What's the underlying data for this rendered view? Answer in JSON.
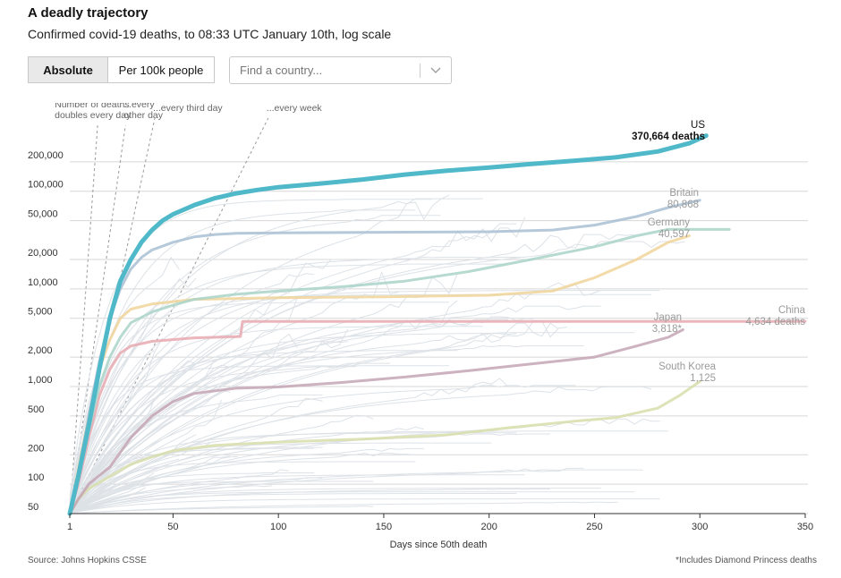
{
  "header": {
    "title": "A deadly trajectory",
    "subtitle": "Confirmed covid-19 deaths, to 08:33 UTC January 10th, log scale"
  },
  "controls": {
    "toggle": {
      "active_label": "Absolute",
      "inactive_label": "Per 100k people"
    },
    "search": {
      "placeholder": "Find a country..."
    },
    "dropdown_icon": "chevron-down-icon"
  },
  "footer": {
    "source": "Source: Johns Hopkins CSSE",
    "footnote": "*Includes Diamond Princess deaths"
  },
  "chart_data": {
    "type": "line",
    "xlabel": "Days since 50th death",
    "ylabel": "",
    "y_scale": "log",
    "xlim": [
      1,
      350
    ],
    "ylim": [
      50,
      400000
    ],
    "x_ticks": [
      1,
      50,
      100,
      150,
      200,
      250,
      300,
      350
    ],
    "y_ticks": [
      {
        "value": 200000,
        "label": "200,000"
      },
      {
        "value": 100000,
        "label": "100,000"
      },
      {
        "value": 50000,
        "label": "50,000"
      },
      {
        "value": 20000,
        "label": "20,000"
      },
      {
        "value": 10000,
        "label": "10,000"
      },
      {
        "value": 5000,
        "label": "5,000"
      },
      {
        "value": 2000,
        "label": "2,000"
      },
      {
        "value": 1000,
        "label": "1,000"
      },
      {
        "value": 500,
        "label": "500"
      },
      {
        "value": 200,
        "label": "200"
      },
      {
        "value": 100,
        "label": "100"
      },
      {
        "value": 50,
        "label": "50"
      }
    ],
    "grid": true,
    "doubling_guides": [
      {
        "label_lines": [
          "Number of deaths",
          "doubles every day"
        ],
        "days": 1
      },
      {
        "label_lines": [
          "...every",
          "other day"
        ],
        "days": 2
      },
      {
        "label_lines": [
          "...every third day"
        ],
        "days": 3
      },
      {
        "label_lines": [
          "...every week"
        ],
        "days": 7
      }
    ],
    "highlighted_series": [
      {
        "name": "US",
        "value_label": "370,664 deaths",
        "color": "#4fb8c9",
        "points": [
          [
            1,
            50
          ],
          [
            5,
            120
          ],
          [
            10,
            400
          ],
          [
            15,
            1500
          ],
          [
            20,
            5000
          ],
          [
            25,
            12000
          ],
          [
            30,
            20000
          ],
          [
            35,
            30000
          ],
          [
            40,
            40000
          ],
          [
            45,
            50000
          ],
          [
            50,
            58000
          ],
          [
            60,
            72000
          ],
          [
            70,
            85000
          ],
          [
            80,
            95000
          ],
          [
            90,
            103000
          ],
          [
            100,
            110000
          ],
          [
            120,
            120000
          ],
          [
            140,
            132000
          ],
          [
            160,
            148000
          ],
          [
            180,
            162000
          ],
          [
            200,
            175000
          ],
          [
            220,
            190000
          ],
          [
            240,
            205000
          ],
          [
            260,
            222000
          ],
          [
            280,
            255000
          ],
          [
            295,
            310000
          ],
          [
            303,
            370664
          ]
        ]
      },
      {
        "name": "Britain",
        "value_label": "80,868",
        "color": "#a8c0d4",
        "points": [
          [
            1,
            50
          ],
          [
            5,
            130
          ],
          [
            10,
            500
          ],
          [
            15,
            1800
          ],
          [
            20,
            5000
          ],
          [
            25,
            10000
          ],
          [
            30,
            16000
          ],
          [
            35,
            21000
          ],
          [
            40,
            25000
          ],
          [
            50,
            30000
          ],
          [
            60,
            34000
          ],
          [
            70,
            36000
          ],
          [
            80,
            37000
          ],
          [
            100,
            37500
          ],
          [
            150,
            38000
          ],
          [
            200,
            38500
          ],
          [
            230,
            40000
          ],
          [
            250,
            45000
          ],
          [
            270,
            55000
          ],
          [
            285,
            68000
          ],
          [
            300,
            80868
          ]
        ]
      },
      {
        "name": "Germany",
        "value_label": "40,597",
        "color": "#a9d3c8",
        "points": [
          [
            1,
            50
          ],
          [
            5,
            110
          ],
          [
            10,
            350
          ],
          [
            15,
            1000
          ],
          [
            20,
            2000
          ],
          [
            25,
            3200
          ],
          [
            30,
            4500
          ],
          [
            40,
            5800
          ],
          [
            50,
            6800
          ],
          [
            60,
            7800
          ],
          [
            80,
            8800
          ],
          [
            100,
            9500
          ],
          [
            130,
            10500
          ],
          [
            160,
            12000
          ],
          [
            190,
            15000
          ],
          [
            220,
            20000
          ],
          [
            250,
            27000
          ],
          [
            270,
            35000
          ],
          [
            285,
            40597
          ],
          [
            314,
            40597
          ]
        ]
      },
      {
        "name": "",
        "value_label": "",
        "color": "#f0d49a",
        "points": [
          [
            1,
            50
          ],
          [
            5,
            140
          ],
          [
            10,
            500
          ],
          [
            15,
            1500
          ],
          [
            20,
            3000
          ],
          [
            25,
            5000
          ],
          [
            30,
            6200
          ],
          [
            40,
            7000
          ],
          [
            60,
            7800
          ],
          [
            100,
            8100
          ],
          [
            150,
            8300
          ],
          [
            200,
            8600
          ],
          [
            230,
            9500
          ],
          [
            250,
            13000
          ],
          [
            270,
            20000
          ],
          [
            285,
            30000
          ],
          [
            295,
            35000
          ]
        ]
      },
      {
        "name": "China",
        "value_label": "4,634 deaths",
        "color": "#e8a8b0",
        "points": [
          [
            1,
            50
          ],
          [
            5,
            100
          ],
          [
            10,
            300
          ],
          [
            15,
            800
          ],
          [
            20,
            1500
          ],
          [
            25,
            2200
          ],
          [
            30,
            2600
          ],
          [
            40,
            2900
          ],
          [
            60,
            3150
          ],
          [
            82,
            3250
          ],
          [
            83,
            4634
          ],
          [
            150,
            4634
          ],
          [
            250,
            4634
          ],
          [
            350,
            4634
          ]
        ]
      },
      {
        "name": "Japan",
        "value_label": "3,818*",
        "color": "#c4a4b4",
        "points": [
          [
            1,
            50
          ],
          [
            5,
            70
          ],
          [
            10,
            100
          ],
          [
            20,
            150
          ],
          [
            30,
            300
          ],
          [
            40,
            500
          ],
          [
            50,
            700
          ],
          [
            60,
            850
          ],
          [
            80,
            960
          ],
          [
            100,
            990
          ],
          [
            130,
            1100
          ],
          [
            160,
            1250
          ],
          [
            190,
            1450
          ],
          [
            220,
            1700
          ],
          [
            250,
            2000
          ],
          [
            270,
            2600
          ],
          [
            285,
            3200
          ],
          [
            292,
            3818
          ]
        ]
      },
      {
        "name": "South Korea",
        "value_label": "1,125",
        "color": "#d8deaa",
        "points": [
          [
            1,
            50
          ],
          [
            5,
            70
          ],
          [
            10,
            90
          ],
          [
            20,
            120
          ],
          [
            30,
            160
          ],
          [
            40,
            190
          ],
          [
            50,
            220
          ],
          [
            70,
            250
          ],
          [
            100,
            270
          ],
          [
            140,
            290
          ],
          [
            180,
            320
          ],
          [
            210,
            380
          ],
          [
            240,
            440
          ],
          [
            260,
            480
          ],
          [
            280,
            600
          ],
          [
            290,
            800
          ],
          [
            300,
            1125
          ]
        ]
      }
    ]
  }
}
